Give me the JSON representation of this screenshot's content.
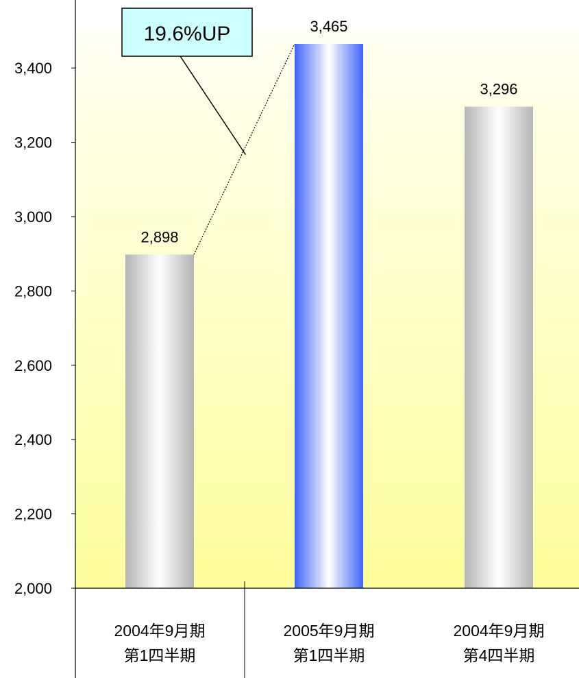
{
  "chart_data": {
    "type": "bar",
    "categories": [
      {
        "line1": "2004年9月期",
        "line2": "第1四半期"
      },
      {
        "line1": "2005年9月期",
        "line2": "第1四半期"
      },
      {
        "line1": "2004年9月期",
        "line2": "第4四半期"
      }
    ],
    "values": [
      2898,
      3465,
      3296
    ],
    "value_labels": [
      "2,898",
      "3,465",
      "3,296"
    ],
    "ylim": [
      2000,
      3500
    ],
    "yticks": [
      {
        "value": 2000,
        "label": "2,000"
      },
      {
        "value": 2200,
        "label": "2,200"
      },
      {
        "value": 2400,
        "label": "2,400"
      },
      {
        "value": 2600,
        "label": "2,600"
      },
      {
        "value": 2800,
        "label": "2,800"
      },
      {
        "value": 3000,
        "label": "3,000"
      },
      {
        "value": 3200,
        "label": "3,200"
      },
      {
        "value": 3400,
        "label": "3,400"
      }
    ],
    "annotation": {
      "text": "19.6%UP",
      "from_bar": 0,
      "to_bar": 1
    },
    "colors": {
      "bar_default_edge": "#b4b4b4",
      "bar_default_center": "#ffffff",
      "bar_highlight_edge": "#3f64f5",
      "bar_highlight_center": "#ffffff",
      "background_top": "#fffff4",
      "background_bottom": "#ffff9c",
      "callout_fill": "#ccffff"
    },
    "highlight_bar": 1,
    "grid": false,
    "legend": "none"
  }
}
